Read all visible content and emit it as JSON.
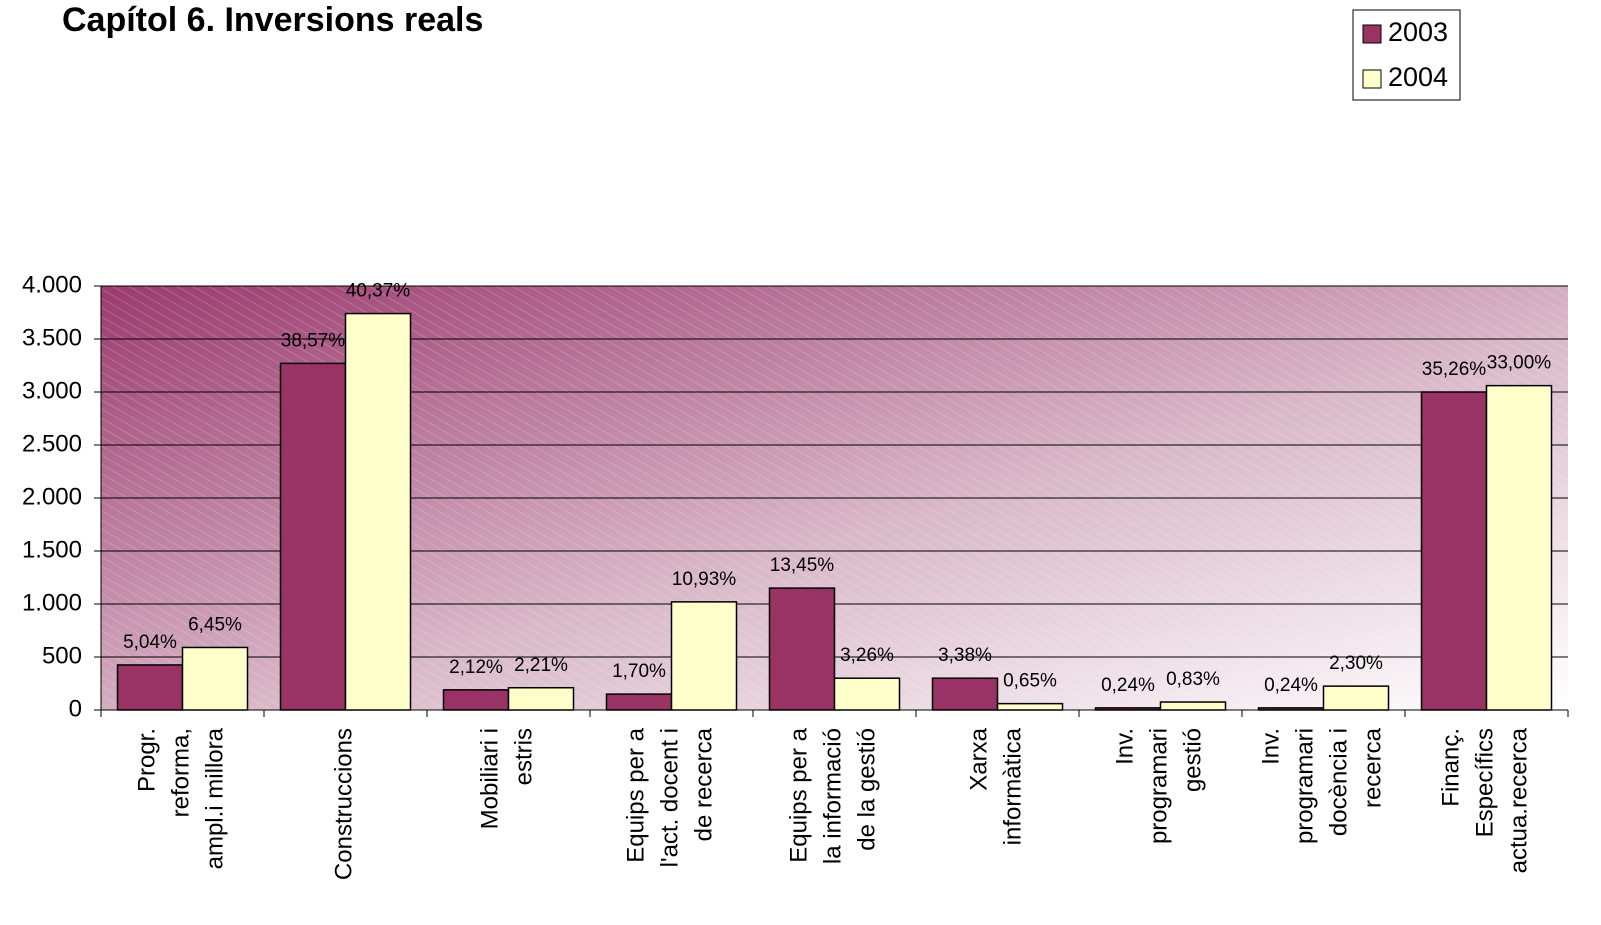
{
  "chart_data": {
    "type": "bar",
    "title": "Capítol 6. Inversions reals",
    "categories": [
      "Progr.\nreforma,\nampl.i millora",
      "Construccions",
      "Mobiliari i\nestris",
      "Equips per a\nl'act. docent i\nde recerca",
      "Equips per a\nla informació\nde la gestió",
      "Xarxa\ninformàtica",
      "Inv.\nprogramari\ngestió",
      "Inv.\nprogramari\ndocència i\nrecerca",
      "Finanç.\nEspecífics\nactua.recerca"
    ],
    "series": [
      {
        "name": "2003",
        "color": "#993366",
        "values": [
          425,
          3270,
          190,
          150,
          1150,
          300,
          20,
          20,
          3000
        ],
        "labels": [
          "5,04%",
          "38,57%",
          "2,12%",
          "1,70%",
          "13,45%",
          "3,38%",
          "0,24%",
          "0,24%",
          "35,26%"
        ]
      },
      {
        "name": "2004",
        "color": "#ffffcc",
        "values": [
          590,
          3740,
          210,
          1020,
          300,
          60,
          75,
          225,
          3060
        ],
        "labels": [
          "6,45%",
          "40,37%",
          "2,21%",
          "10,93%",
          "3,26%",
          "0,65%",
          "0,83%",
          "2,30%",
          "33,00%"
        ]
      }
    ],
    "ylim": [
      0,
      4000
    ],
    "yticks": [
      0,
      500,
      {
        "value": 1000,
        "label": "1.000"
      },
      {
        "value": 1500,
        "label": "1.500"
      },
      {
        "value": 2000,
        "label": "2.000"
      },
      {
        "value": 2500,
        "label": "2.500"
      },
      {
        "value": 3000,
        "label": "3.000"
      },
      {
        "value": 3500,
        "label": "3.500"
      },
      {
        "value": 4000,
        "label": "4.000"
      }
    ],
    "grid": true,
    "legend": "top-right"
  }
}
